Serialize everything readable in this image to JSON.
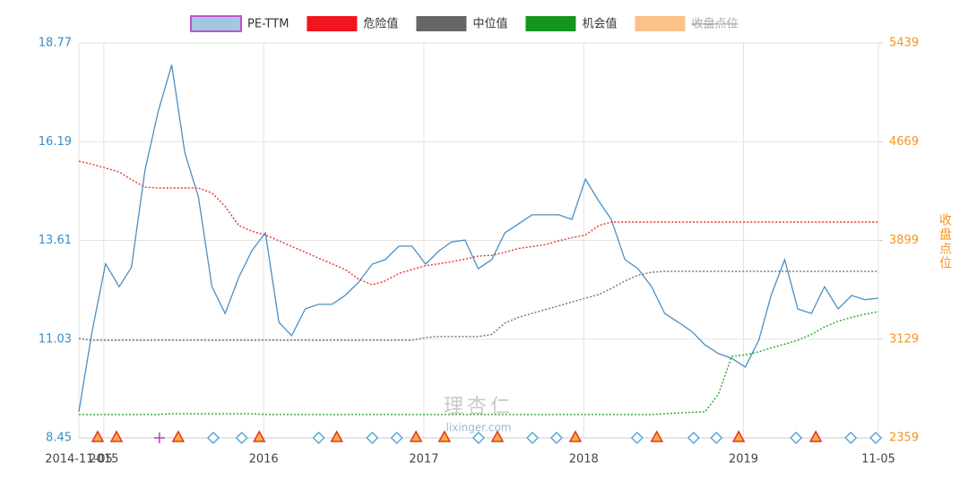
{
  "chart_data": {
    "type": "line",
    "x": [
      "2014-11-05",
      "2014-12-05",
      "2015-01-05",
      "2015-02-05",
      "2015-03-05",
      "2015-04-05",
      "2015-05-05",
      "2015-06-05",
      "2015-07-05",
      "2015-08-05",
      "2015-09-05",
      "2015-10-05",
      "2015-11-05",
      "2015-12-05",
      "2016-01-05",
      "2016-02-05",
      "2016-03-05",
      "2016-04-05",
      "2016-05-05",
      "2016-06-05",
      "2016-07-05",
      "2016-08-05",
      "2016-09-05",
      "2016-10-05",
      "2016-11-05",
      "2016-12-05",
      "2017-01-05",
      "2017-02-05",
      "2017-03-05",
      "2017-04-05",
      "2017-05-05",
      "2017-06-05",
      "2017-07-05",
      "2017-08-05",
      "2017-09-05",
      "2017-10-05",
      "2017-11-05",
      "2017-12-05",
      "2018-01-05",
      "2018-02-05",
      "2018-03-05",
      "2018-04-05",
      "2018-05-05",
      "2018-06-05",
      "2018-07-05",
      "2018-08-05",
      "2018-09-05",
      "2018-10-05",
      "2018-11-05",
      "2018-12-05",
      "2019-01-05",
      "2019-02-05",
      "2019-03-05",
      "2019-04-05",
      "2019-05-05",
      "2019-06-05",
      "2019-07-05",
      "2019-08-05",
      "2019-09-05",
      "2019-10-05",
      "2019-11-05"
    ],
    "xlim": [
      "2014-11-05",
      "2019-11-05"
    ],
    "xticks": [
      {
        "value": "2014-11-05",
        "label": "2014-11-05"
      },
      {
        "value": "2015-01-01",
        "label": "2015"
      },
      {
        "value": "2016-01-01",
        "label": "2016"
      },
      {
        "value": "2017-01-01",
        "label": "2017"
      },
      {
        "value": "2018-01-01",
        "label": "2018"
      },
      {
        "value": "2019-01-01",
        "label": "2019"
      },
      {
        "value": "2019-11-05",
        "label": "11-05"
      }
    ],
    "ylim": [
      8.45,
      18.77
    ],
    "yticks": [
      8.45,
      11.03,
      13.61,
      16.19,
      18.77
    ],
    "y2lim": [
      2359,
      5439
    ],
    "y2ticks": [
      2359,
      3129,
      3899,
      4669,
      5439
    ],
    "y2label": "收盘点位",
    "grid": true,
    "watermark": [
      "理杏仁",
      "lixinger.com"
    ],
    "series": [
      {
        "name": "PE-TTM",
        "color": "#4a8fc4",
        "legend_color": "#a3c6e2",
        "legend_border": "#c056c8",
        "line_style": "solid",
        "values": [
          9.13,
          11.23,
          13.0,
          12.4,
          12.9,
          15.45,
          16.97,
          18.2,
          15.9,
          14.74,
          12.4,
          11.7,
          12.64,
          13.34,
          13.81,
          11.47,
          11.12,
          11.82,
          11.94,
          11.94,
          12.17,
          12.52,
          12.99,
          13.11,
          13.46,
          13.46,
          12.99,
          13.34,
          13.57,
          13.62,
          12.87,
          13.11,
          13.81,
          14.04,
          14.28,
          14.28,
          14.28,
          14.16,
          15.21,
          14.63,
          14.16,
          13.11,
          12.87,
          12.4,
          11.7,
          11.47,
          11.23,
          10.88,
          10.65,
          10.53,
          10.3,
          11.0,
          12.17,
          13.11,
          11.82,
          11.7,
          12.4,
          11.82,
          12.17,
          12.06,
          12.1
        ]
      },
      {
        "name": "危险值",
        "color": "#e8312f",
        "legend_color": "#f0141e",
        "line_style": "dotted",
        "values": [
          15.68,
          15.6,
          15.5,
          15.4,
          15.2,
          15.0,
          14.98,
          14.98,
          14.98,
          14.98,
          14.85,
          14.5,
          14.0,
          13.85,
          13.75,
          13.6,
          13.45,
          13.3,
          13.15,
          13.0,
          12.85,
          12.6,
          12.45,
          12.55,
          12.75,
          12.85,
          12.95,
          13.0,
          13.05,
          13.12,
          13.2,
          13.22,
          13.3,
          13.4,
          13.45,
          13.5,
          13.6,
          13.68,
          13.75,
          14.0,
          14.09,
          14.09,
          14.09,
          14.09,
          14.09,
          14.09,
          14.09,
          14.09,
          14.09,
          14.09,
          14.09,
          14.09,
          14.09,
          14.09,
          14.09,
          14.09,
          14.09,
          14.09,
          14.09,
          14.09,
          14.09
        ]
      },
      {
        "name": "中位值",
        "color": "#707070",
        "legend_color": "#666666",
        "line_style": "dotted",
        "values": [
          11.05,
          11.0,
          11.0,
          11.0,
          11.0,
          11.0,
          11.0,
          11.0,
          11.0,
          11.0,
          11.0,
          11.0,
          11.0,
          11.0,
          11.0,
          11.0,
          11.0,
          11.0,
          11.0,
          11.0,
          11.0,
          11.0,
          11.0,
          11.0,
          11.0,
          11.0,
          11.07,
          11.1,
          11.1,
          11.1,
          11.1,
          11.15,
          11.45,
          11.6,
          11.7,
          11.8,
          11.9,
          12.0,
          12.1,
          12.2,
          12.35,
          12.55,
          12.7,
          12.78,
          12.8,
          12.8,
          12.8,
          12.8,
          12.8,
          12.8,
          12.8,
          12.8,
          12.8,
          12.8,
          12.8,
          12.8,
          12.8,
          12.8,
          12.8,
          12.8,
          12.8
        ]
      },
      {
        "name": "机会值",
        "color": "#2aa52a",
        "legend_color": "#14961e",
        "line_style": "dotted",
        "values": [
          9.06,
          9.06,
          9.06,
          9.06,
          9.06,
          9.06,
          9.06,
          9.08,
          9.08,
          9.08,
          9.08,
          9.08,
          9.08,
          9.08,
          9.06,
          9.06,
          9.06,
          9.06,
          9.06,
          9.06,
          9.06,
          9.06,
          9.06,
          9.06,
          9.06,
          9.06,
          9.06,
          9.06,
          9.06,
          9.06,
          9.06,
          9.06,
          9.06,
          9.06,
          9.06,
          9.06,
          9.06,
          9.06,
          9.06,
          9.06,
          9.06,
          9.06,
          9.06,
          9.06,
          9.08,
          9.1,
          9.12,
          9.13,
          9.6,
          10.58,
          10.62,
          10.7,
          10.8,
          10.9,
          11.0,
          11.15,
          11.35,
          11.5,
          11.6,
          11.68,
          11.75
        ]
      },
      {
        "name": "收盘点位",
        "color": "#f7931e",
        "legend_color": "#fcc18a",
        "line_style": "solid",
        "axis": "y2",
        "hidden": true
      }
    ],
    "markers": [
      {
        "x": "2014-12-18",
        "shape": "triangle"
      },
      {
        "x": "2015-01-30",
        "shape": "triangle"
      },
      {
        "x": "2015-05-08",
        "shape": "plus"
      },
      {
        "x": "2015-06-20",
        "shape": "triangle"
      },
      {
        "x": "2015-09-08",
        "shape": "diamond"
      },
      {
        "x": "2015-11-12",
        "shape": "diamond"
      },
      {
        "x": "2015-12-22",
        "shape": "triangle"
      },
      {
        "x": "2016-05-06",
        "shape": "diamond"
      },
      {
        "x": "2016-06-16",
        "shape": "triangle"
      },
      {
        "x": "2016-09-05",
        "shape": "diamond"
      },
      {
        "x": "2016-10-31",
        "shape": "diamond"
      },
      {
        "x": "2016-12-14",
        "shape": "triangle"
      },
      {
        "x": "2017-02-17",
        "shape": "triangle"
      },
      {
        "x": "2017-05-06",
        "shape": "diamond"
      },
      {
        "x": "2017-06-18",
        "shape": "triangle"
      },
      {
        "x": "2017-09-06",
        "shape": "diamond"
      },
      {
        "x": "2017-10-31",
        "shape": "diamond"
      },
      {
        "x": "2017-12-13",
        "shape": "triangle"
      },
      {
        "x": "2018-05-03",
        "shape": "diamond"
      },
      {
        "x": "2018-06-17",
        "shape": "triangle"
      },
      {
        "x": "2018-09-09",
        "shape": "diamond"
      },
      {
        "x": "2018-10-31",
        "shape": "diamond"
      },
      {
        "x": "2018-12-21",
        "shape": "triangle"
      },
      {
        "x": "2019-05-01",
        "shape": "diamond"
      },
      {
        "x": "2019-06-15",
        "shape": "triangle"
      },
      {
        "x": "2019-09-03",
        "shape": "diamond"
      },
      {
        "x": "2019-10-30",
        "shape": "diamond"
      }
    ]
  }
}
